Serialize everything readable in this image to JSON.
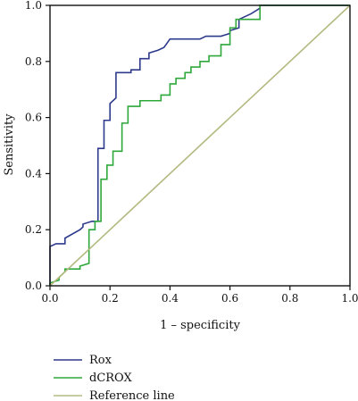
{
  "chart_data": {
    "type": "line",
    "title": "",
    "xlabel": "1 – specificity",
    "ylabel": "Sensitivity",
    "xlim": [
      0,
      1
    ],
    "ylim": [
      0,
      1
    ],
    "x_ticks": [
      "0.0",
      "0.2",
      "0.4",
      "0.6",
      "0.8",
      "1.0"
    ],
    "y_ticks": [
      "0.0",
      "0.2",
      "0.4",
      "0.6",
      "0.8",
      "1.0"
    ],
    "grid": false,
    "legend_position": "below",
    "series": [
      {
        "name": "Rox",
        "color": "#2e3a8c",
        "x": [
          0.0,
          0.0,
          0.02,
          0.05,
          0.05,
          0.1,
          0.11,
          0.11,
          0.14,
          0.16,
          0.16,
          0.18,
          0.18,
          0.2,
          0.2,
          0.22,
          0.22,
          0.27,
          0.27,
          0.3,
          0.3,
          0.33,
          0.33,
          0.36,
          0.38,
          0.4,
          0.5,
          0.52,
          0.57,
          0.6,
          0.6,
          0.63,
          0.63,
          0.65,
          0.67,
          0.7,
          0.7,
          1.0
        ],
        "y": [
          0.0,
          0.14,
          0.15,
          0.15,
          0.17,
          0.2,
          0.21,
          0.22,
          0.23,
          0.23,
          0.49,
          0.49,
          0.59,
          0.59,
          0.65,
          0.67,
          0.76,
          0.76,
          0.77,
          0.77,
          0.81,
          0.81,
          0.83,
          0.84,
          0.85,
          0.88,
          0.88,
          0.89,
          0.89,
          0.9,
          0.91,
          0.92,
          0.95,
          0.96,
          0.97,
          0.99,
          1.0,
          1.0
        ]
      },
      {
        "name": "dCROX",
        "color": "#2ea83a",
        "x": [
          0.0,
          0.0,
          0.03,
          0.03,
          0.05,
          0.05,
          0.1,
          0.1,
          0.13,
          0.13,
          0.15,
          0.15,
          0.17,
          0.17,
          0.19,
          0.19,
          0.21,
          0.21,
          0.24,
          0.24,
          0.26,
          0.26,
          0.3,
          0.3,
          0.37,
          0.37,
          0.4,
          0.4,
          0.42,
          0.42,
          0.45,
          0.45,
          0.47,
          0.47,
          0.5,
          0.5,
          0.53,
          0.53,
          0.57,
          0.57,
          0.6,
          0.6,
          0.62,
          0.62,
          0.7,
          0.7,
          1.0
        ],
        "y": [
          0.0,
          0.01,
          0.02,
          0.03,
          0.05,
          0.06,
          0.06,
          0.07,
          0.08,
          0.2,
          0.2,
          0.23,
          0.23,
          0.38,
          0.38,
          0.43,
          0.43,
          0.48,
          0.48,
          0.58,
          0.58,
          0.64,
          0.64,
          0.66,
          0.66,
          0.68,
          0.68,
          0.72,
          0.72,
          0.74,
          0.74,
          0.76,
          0.76,
          0.78,
          0.78,
          0.8,
          0.8,
          0.82,
          0.82,
          0.86,
          0.86,
          0.92,
          0.92,
          0.95,
          0.95,
          1.0,
          1.0
        ]
      },
      {
        "name": "Reference line",
        "color": "#b4ba82",
        "x": [
          0.0,
          1.0
        ],
        "y": [
          0.0,
          1.0
        ]
      }
    ]
  }
}
